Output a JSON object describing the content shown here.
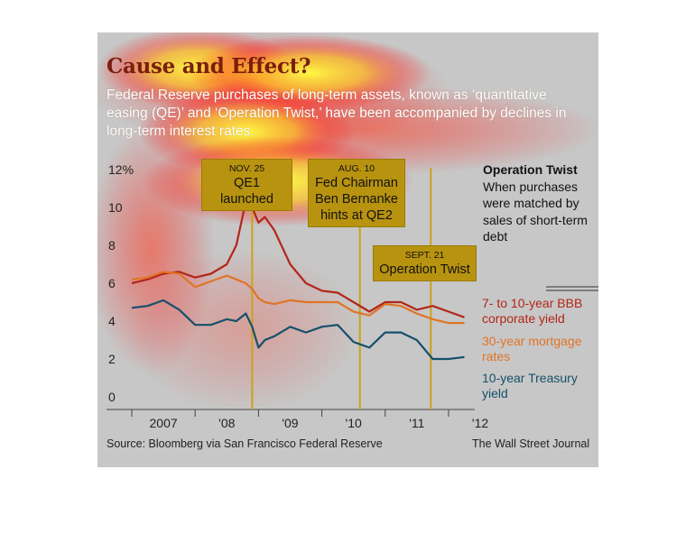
{
  "header": {
    "title": "Cause and Effect?",
    "subtitle": "Federal Reserve purchases of long-term assets, known as ‘quantitative easing (QE)’ and ‘Operation Twist,’ have been accompanied by declines in long-term interest rates."
  },
  "callouts": [
    {
      "date": "NOV. 25",
      "text": "QE1 launched"
    },
    {
      "date": "AUG. 10",
      "text": "Fed Chairman Ben Bernanke hints at QE2"
    },
    {
      "date": "SEPT. 21",
      "text": "Operation Twist"
    }
  ],
  "operation_twist_note": {
    "heading": "Operation Twist",
    "body": "When purchases were matched by sales of short-term debt"
  },
  "legend": [
    {
      "label": "7- to 10-year BBB corporate yield",
      "color": "#b32619"
    },
    {
      "label": "30-year mortgage rates",
      "color": "#e07427"
    },
    {
      "label": "10-year Treasury yield",
      "color": "#16506b"
    }
  ],
  "footer": {
    "source": "Source: Bloomberg via San Francisco Federal Reserve",
    "credit": "The Wall Street Journal"
  },
  "colors": {
    "accent": "#b8930f",
    "panel": "#c7c7c7",
    "title": "#7a1f0e"
  },
  "chart_data": {
    "type": "line",
    "title": "Cause and Effect?",
    "xlabel": "",
    "ylabel": "",
    "ylim": [
      0,
      12
    ],
    "y_unit": "%",
    "yticks": [
      "12%",
      "10",
      "8",
      "6",
      "4",
      "2",
      "0"
    ],
    "xticks": [
      "2007",
      "'08",
      "'09",
      "'10",
      "'11",
      "'12"
    ],
    "xlim": [
      2007.0,
      2012.3
    ],
    "grid": false,
    "events": [
      {
        "x": 2008.9,
        "label": "QE1 launched"
      },
      {
        "x": 2010.6,
        "label": "QE2"
      },
      {
        "x": 2011.72,
        "label": "Operation Twist"
      }
    ],
    "x": [
      2007.0,
      2007.25,
      2007.5,
      2007.75,
      2008.0,
      2008.25,
      2008.5,
      2008.65,
      2008.8,
      2008.9,
      2009.0,
      2009.1,
      2009.25,
      2009.5,
      2009.75,
      2010.0,
      2010.25,
      2010.5,
      2010.75,
      2011.0,
      2011.25,
      2011.5,
      2011.75,
      2012.0,
      2012.25
    ],
    "series": [
      {
        "name": "7- to 10-year BBB corporate yield",
        "color": "#b32619",
        "values": [
          6.0,
          6.2,
          6.5,
          6.6,
          6.3,
          6.5,
          7.0,
          8.0,
          10.3,
          10.0,
          9.2,
          9.5,
          8.8,
          7.0,
          6.0,
          5.6,
          5.5,
          5.0,
          4.5,
          5.0,
          5.0,
          4.6,
          4.8,
          4.5,
          4.2
        ]
      },
      {
        "name": "30-year mortgage rates",
        "color": "#e07427",
        "values": [
          6.2,
          6.3,
          6.6,
          6.5,
          5.8,
          6.1,
          6.4,
          6.2,
          6.0,
          5.7,
          5.2,
          5.0,
          4.9,
          5.1,
          5.0,
          5.0,
          5.0,
          4.5,
          4.3,
          4.9,
          4.8,
          4.4,
          4.1,
          3.9,
          3.9
        ]
      },
      {
        "name": "10-year Treasury yield",
        "color": "#16506b",
        "values": [
          4.7,
          4.8,
          5.1,
          4.6,
          3.8,
          3.8,
          4.1,
          4.0,
          4.4,
          3.7,
          2.6,
          3.0,
          3.2,
          3.7,
          3.4,
          3.7,
          3.8,
          2.9,
          2.6,
          3.4,
          3.4,
          3.0,
          2.0,
          2.0,
          2.1
        ]
      }
    ]
  }
}
